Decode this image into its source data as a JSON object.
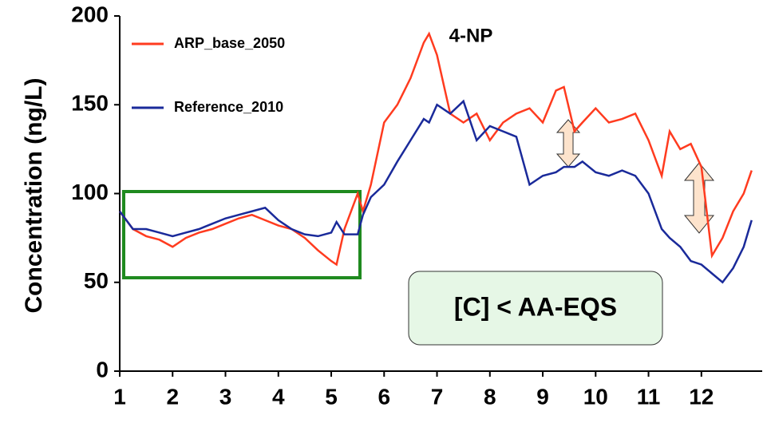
{
  "chart_data": {
    "type": "line",
    "title": "4-NP",
    "y_label": "Concentration (ng/L)",
    "annotation": "[C] < AA-EQS",
    "x": [
      1,
      1.25,
      1.5,
      1.75,
      2,
      2.25,
      2.5,
      2.75,
      3,
      3.25,
      3.5,
      3.75,
      4,
      4.25,
      4.5,
      4.75,
      5,
      5.1,
      5.25,
      5.5,
      5.6,
      5.75,
      6,
      6.25,
      6.5,
      6.75,
      6.85,
      7,
      7.25,
      7.5,
      7.75,
      8,
      8.25,
      8.5,
      8.75,
      9,
      9.25,
      9.4,
      9.6,
      9.75,
      10,
      10.25,
      10.5,
      10.75,
      11,
      11.25,
      11.4,
      11.6,
      11.8,
      12,
      12.2,
      12.4,
      12.6,
      12.8,
      12.95
    ],
    "series": [
      {
        "name": "ARP_base_2050",
        "color": "#ff3b1f",
        "values": [
          90,
          80,
          76,
          74,
          70,
          75,
          78,
          80,
          83,
          86,
          88,
          85,
          82,
          80,
          75,
          68,
          62,
          60,
          80,
          100,
          90,
          105,
          140,
          150,
          165,
          185,
          190,
          178,
          145,
          140,
          145,
          130,
          140,
          145,
          148,
          140,
          158,
          160,
          135,
          140,
          148,
          140,
          142,
          145,
          130,
          110,
          135,
          125,
          128,
          115,
          65,
          75,
          90,
          100,
          113
        ]
      },
      {
        "name": "Reference_2010",
        "color": "#1a2a9a",
        "values": [
          90,
          80,
          80,
          78,
          76,
          78,
          80,
          83,
          86,
          88,
          90,
          92,
          85,
          80,
          77,
          76,
          78,
          84,
          77,
          77,
          88,
          98,
          105,
          118,
          130,
          142,
          140,
          150,
          145,
          152,
          130,
          138,
          135,
          132,
          105,
          110,
          112,
          115,
          115,
          118,
          112,
          110,
          113,
          110,
          100,
          80,
          75,
          70,
          62,
          60,
          55,
          50,
          58,
          70,
          85
        ]
      }
    ],
    "xlim": [
      1,
      13.15
    ],
    "xticks": [
      1,
      2,
      3,
      4,
      5,
      6,
      7,
      8,
      9,
      10,
      11,
      12
    ],
    "ylim": [
      0,
      200
    ],
    "yticks": [
      0,
      50,
      100,
      150,
      200
    ],
    "grid": false,
    "legend": "upper left"
  }
}
